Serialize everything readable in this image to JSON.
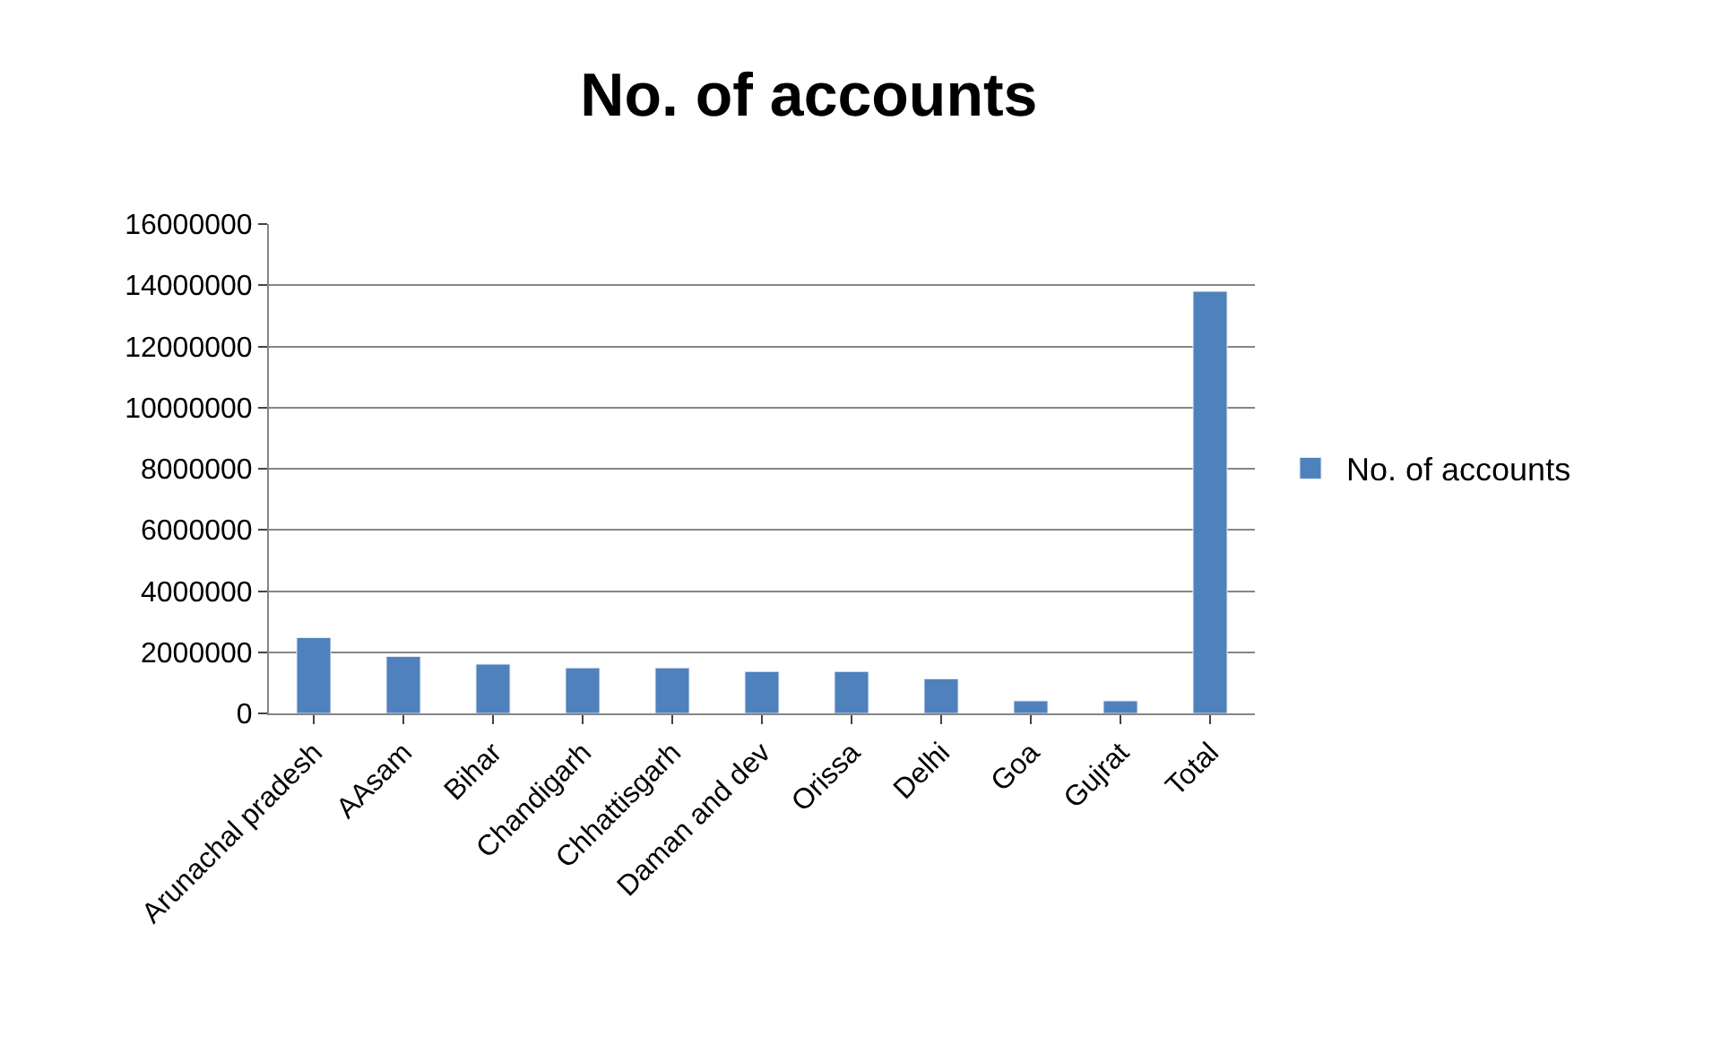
{
  "chart_data": {
    "type": "bar",
    "title": "No. of accounts",
    "categories": [
      "Arunachal pradesh",
      "AAsam",
      "Bihar",
      "Chandigarh",
      "Chhattisgarh",
      "Daman and dev",
      "Orissa",
      "Delhi",
      "Goa",
      "Gujrat",
      "Total"
    ],
    "series": [
      {
        "name": "No. of accounts",
        "color": "#4f81bd",
        "values": [
          2480000,
          1860000,
          1610000,
          1490000,
          1490000,
          1370000,
          1370000,
          1130000,
          410000,
          410000,
          13800000
        ]
      }
    ],
    "ylim": [
      0,
      16000000
    ],
    "yticks": [
      0,
      2000000,
      4000000,
      6000000,
      8000000,
      10000000,
      12000000,
      14000000,
      16000000
    ],
    "grid": "y",
    "legend": "right"
  }
}
